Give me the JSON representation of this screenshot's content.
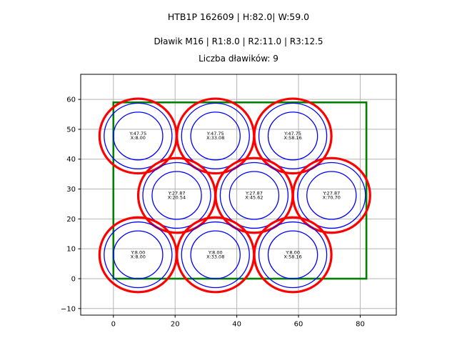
{
  "header": {
    "title": "HTB1P 162609 | H:82.0| W:59.0",
    "subtitle": "Dławik M16 | R1:8.0 | R2:11.0 | R3:12.5",
    "count_line": "Liczba dławików: 9"
  },
  "chart_data": {
    "type": "scatter",
    "title": "HTB1P 162609 | H:82.0| W:59.0",
    "xlabel": "",
    "ylabel": "",
    "xlim": [
      -10.6,
      91.7
    ],
    "ylim": [
      -12.2,
      68.4
    ],
    "grid": true,
    "x_ticks": [
      0,
      20,
      40,
      60,
      80
    ],
    "x_tick_labels": [
      "0",
      "20",
      "40",
      "60",
      "80"
    ],
    "y_ticks": [
      -10,
      0,
      10,
      20,
      30,
      40,
      50,
      60
    ],
    "y_tick_labels": [
      "−10",
      "0",
      "10",
      "20",
      "30",
      "40",
      "50",
      "60"
    ],
    "enclosure_rect": {
      "x": 0,
      "y": 0,
      "width": 82,
      "height": 59
    },
    "gland_radii": {
      "r1": 8.0,
      "r2": 11.0,
      "r3": 12.5
    },
    "glands": [
      {
        "x": 8.0,
        "y": 47.75,
        "label_line1": "Y:47.75",
        "label_line2": "X:8.00"
      },
      {
        "x": 33.08,
        "y": 47.75,
        "label_line1": "Y:47.75",
        "label_line2": "X:33.08"
      },
      {
        "x": 58.16,
        "y": 47.75,
        "label_line1": "Y:47.75",
        "label_line2": "X:58.16"
      },
      {
        "x": 20.54,
        "y": 27.87,
        "label_line1": "Y:27.87",
        "label_line2": "X:20.54"
      },
      {
        "x": 45.62,
        "y": 27.87,
        "label_line1": "Y:27.87",
        "label_line2": "X:45.62"
      },
      {
        "x": 70.7,
        "y": 27.87,
        "label_line1": "Y:27.87",
        "label_line2": "X:70.70"
      },
      {
        "x": 8.0,
        "y": 8.0,
        "label_line1": "Y:8.00",
        "label_line2": "X:8.00"
      },
      {
        "x": 33.08,
        "y": 8.0,
        "label_line1": "Y:8.00",
        "label_line2": "X:33.08"
      },
      {
        "x": 58.16,
        "y": 8.0,
        "label_line1": "Y:8.00",
        "label_line2": "X:58.16"
      }
    ],
    "colors": {
      "outer_circle": "#ff0000",
      "inner_circles": "#0000ff",
      "enclosure": "#008000",
      "grid": "#b4b4b4",
      "axes_box": "#000000",
      "text": "#000000"
    }
  }
}
